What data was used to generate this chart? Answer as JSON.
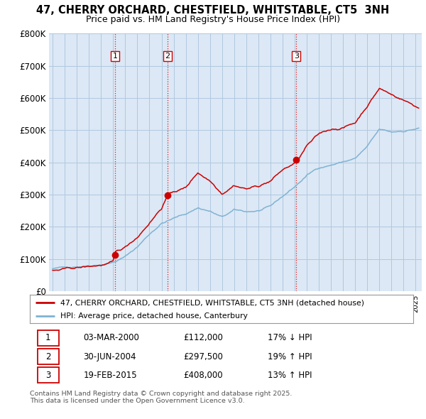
{
  "title": "47, CHERRY ORCHARD, CHESTFIELD, WHITSTABLE, CT5  3NH",
  "subtitle": "Price paid vs. HM Land Registry's House Price Index (HPI)",
  "sale_dates_decimal": [
    2000.17,
    2004.5,
    2015.13
  ],
  "sale_prices": [
    112000,
    297500,
    408000
  ],
  "legend_entries": [
    "47, CHERRY ORCHARD, CHESTFIELD, WHITSTABLE, CT5 3NH (detached house)",
    "HPI: Average price, detached house, Canterbury"
  ],
  "table_rows": [
    [
      "1",
      "03-MAR-2000",
      "£112,000",
      "17% ↓ HPI"
    ],
    [
      "2",
      "30-JUN-2004",
      "£297,500",
      "19% ↑ HPI"
    ],
    [
      "3",
      "19-FEB-2015",
      "£408,000",
      "13% ↑ HPI"
    ]
  ],
  "footer": "Contains HM Land Registry data © Crown copyright and database right 2025.\nThis data is licensed under the Open Government Licence v3.0.",
  "line_color_red": "#cc0000",
  "line_color_blue": "#7fb3d3",
  "background_color": "#f0f4fa",
  "plot_bg_color": "#dce8f5",
  "grid_color": "#b0c8e0",
  "ylim": [
    0,
    800000
  ],
  "yticks": [
    0,
    100000,
    200000,
    300000,
    400000,
    500000,
    600000,
    700000,
    800000
  ],
  "ytick_labels": [
    "£0",
    "£100K",
    "£200K",
    "£300K",
    "£400K",
    "£500K",
    "£600K",
    "£700K",
    "£800K"
  ]
}
